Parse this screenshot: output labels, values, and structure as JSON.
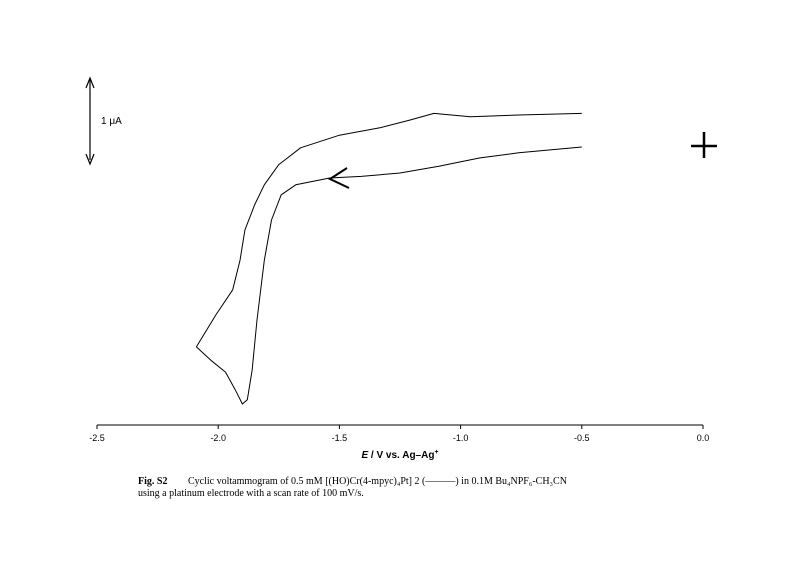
{
  "chart_data": {
    "type": "line",
    "x_label": {
      "italic": "E",
      "main": " / V vs. Ag–Ag",
      "sup": "+"
    },
    "scale_bar": {
      "value": 1,
      "label": "1 μA"
    },
    "xlim": [
      -2.5,
      0
    ],
    "ylim": [
      0,
      4.2
    ],
    "xticks": [
      -2.5,
      {
        "value": -2,
        "label": "-2.0"
      },
      -1.5,
      {
        "value": -1,
        "label": "-1.0"
      },
      -0.5,
      {
        "value": 0,
        "label": "0.0"
      }
    ],
    "series": [
      {
        "color": "#000000",
        "x": [
          -0.5,
          -0.76,
          -0.96,
          -1.11,
          -1.21,
          -1.33,
          -1.5,
          -1.66,
          -1.75,
          -1.81,
          -1.85,
          -1.89,
          -1.91,
          -1.94,
          -2.01,
          -2.09,
          -2.03,
          -1.97,
          -1.93,
          -1.9,
          -1.88,
          -1.86,
          -1.84,
          -1.81,
          -1.78,
          -1.74,
          -1.68,
          -1.54,
          -1.41,
          -1.25,
          -1.09,
          -0.92,
          -0.76,
          -0.5
        ],
        "values": [
          3.71,
          3.69,
          3.67,
          3.71,
          3.63,
          3.54,
          3.45,
          3.3,
          3.1,
          2.86,
          2.62,
          2.32,
          1.96,
          1.61,
          1.31,
          0.93,
          0.77,
          0.63,
          0.42,
          0.25,
          0.3,
          0.65,
          1.25,
          1.96,
          2.44,
          2.74,
          2.86,
          2.94,
          2.96,
          3.0,
          3.08,
          3.18,
          3.24,
          3.31
        ]
      }
    ],
    "fig_label": "Fig. S2",
    "caption_lines": [
      "Cyclic voltammogram of 0.5 mM [(HO)Cr(4-mpyc)₄Pt] 2 (———) in 0.1M Bu₄NPF₆-CH₃CN",
      "using a platinum electrode with a scan rate of 100 mV/s."
    ]
  }
}
